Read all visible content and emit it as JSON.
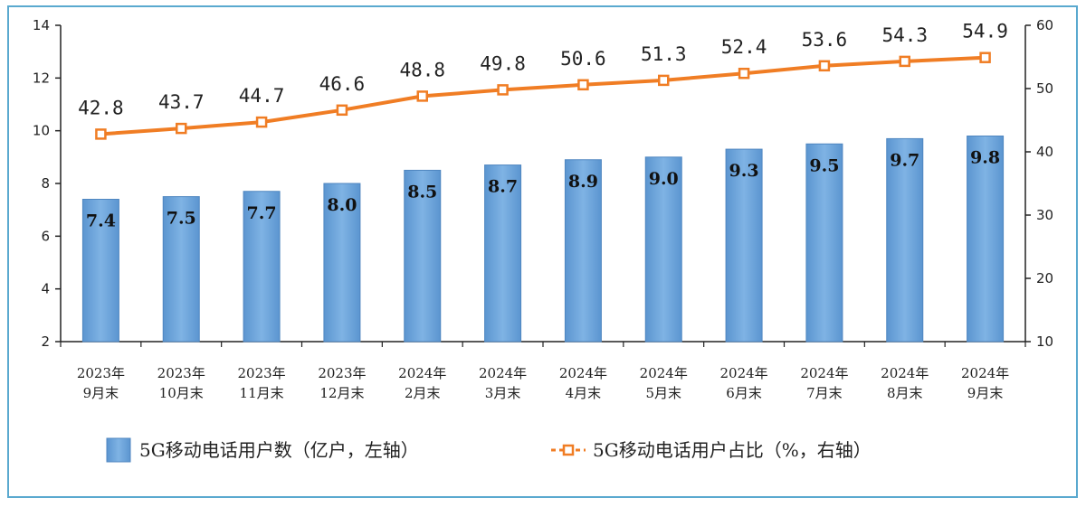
{
  "chart_data": {
    "type": "bar",
    "categories": [
      [
        "2023年",
        "9月末"
      ],
      [
        "2023年",
        "10月末"
      ],
      [
        "2023年",
        "11月末"
      ],
      [
        "2023年",
        "12月末"
      ],
      [
        "2024年",
        "2月末"
      ],
      [
        "2024年",
        "3月末"
      ],
      [
        "2024年",
        "4月末"
      ],
      [
        "2024年",
        "5月末"
      ],
      [
        "2024年",
        "6月末"
      ],
      [
        "2024年",
        "7月末"
      ],
      [
        "2024年",
        "8月末"
      ],
      [
        "2024年",
        "9月末"
      ]
    ],
    "series": [
      {
        "name": "5G移动电话用户数（亿户，左轴）",
        "type": "bar",
        "axis": "left",
        "color": "#6fa8dc",
        "values": [
          7.4,
          7.5,
          7.7,
          8.0,
          8.5,
          8.7,
          8.9,
          9.0,
          9.3,
          9.5,
          9.7,
          9.8
        ],
        "labels": [
          "7.4",
          "7.5",
          "7.7",
          "8.0",
          "8.5",
          "8.7",
          "8.9",
          "9.0",
          "9.3",
          "9.5",
          "9.7",
          "9.8"
        ]
      },
      {
        "name": "5G移动电话用户占比（%，右轴）",
        "type": "line",
        "axis": "right",
        "color": "#f07d24",
        "values": [
          42.8,
          43.7,
          44.7,
          46.6,
          48.8,
          49.8,
          50.6,
          51.3,
          52.4,
          53.6,
          54.3,
          54.9
        ],
        "labels": [
          "42.8",
          "43.7",
          "44.7",
          "46.6",
          "48.8",
          "49.8",
          "50.6",
          "51.3",
          "52.4",
          "53.6",
          "54.3",
          "54.9"
        ]
      }
    ],
    "y_left": {
      "range": [
        2,
        14
      ],
      "ticks": [
        "2",
        "4",
        "6",
        "8",
        "10",
        "12",
        "14"
      ]
    },
    "y_right": {
      "range": [
        10,
        60
      ],
      "ticks": [
        "10",
        "20",
        "30",
        "40",
        "50",
        "60"
      ]
    },
    "legend": "bottom",
    "grid": false
  }
}
